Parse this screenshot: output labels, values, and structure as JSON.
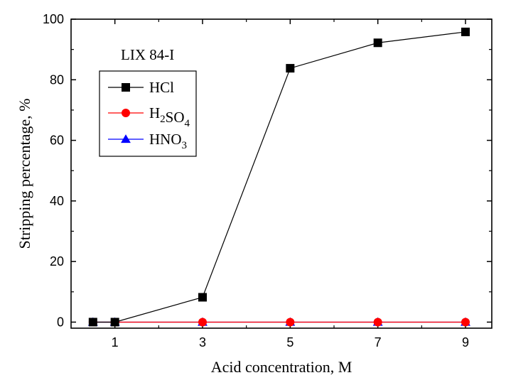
{
  "chart_data": {
    "type": "line",
    "title": "",
    "annotation": "LIX 84-I",
    "xlabel": "Acid concentration, M",
    "ylabel": "Stripping percentage, %",
    "xlim": [
      0.0,
      9.6
    ],
    "ylim": [
      -2,
      100
    ],
    "xticks": [
      1,
      3,
      5,
      7,
      9
    ],
    "yticks": [
      0,
      20,
      40,
      60,
      80,
      100
    ],
    "grid": false,
    "legend_position": "upper-left",
    "series": [
      {
        "name": "HCl",
        "name_parts": [
          {
            "text": "HCl",
            "sub": ""
          }
        ],
        "color": "#000000",
        "marker": "square",
        "x": [
          0.5,
          1,
          3,
          5,
          7,
          9
        ],
        "y": [
          0,
          0,
          8.2,
          83.8,
          92.2,
          95.8
        ]
      },
      {
        "name": "H2SO4",
        "name_parts": [
          {
            "text": "H",
            "sub": "2"
          },
          {
            "text": "SO",
            "sub": "4"
          }
        ],
        "color": "#ff0000",
        "marker": "circle",
        "x": [
          0.5,
          1,
          3,
          5,
          7,
          9
        ],
        "y": [
          0,
          0,
          0,
          0,
          0,
          0
        ]
      },
      {
        "name": "HNO3",
        "name_parts": [
          {
            "text": "HNO",
            "sub": "3"
          }
        ],
        "color": "#0000ff",
        "marker": "triangle",
        "x": [
          0.5,
          1,
          3,
          5,
          7,
          9
        ],
        "y": [
          0,
          0,
          0,
          0,
          0,
          0
        ]
      }
    ]
  }
}
